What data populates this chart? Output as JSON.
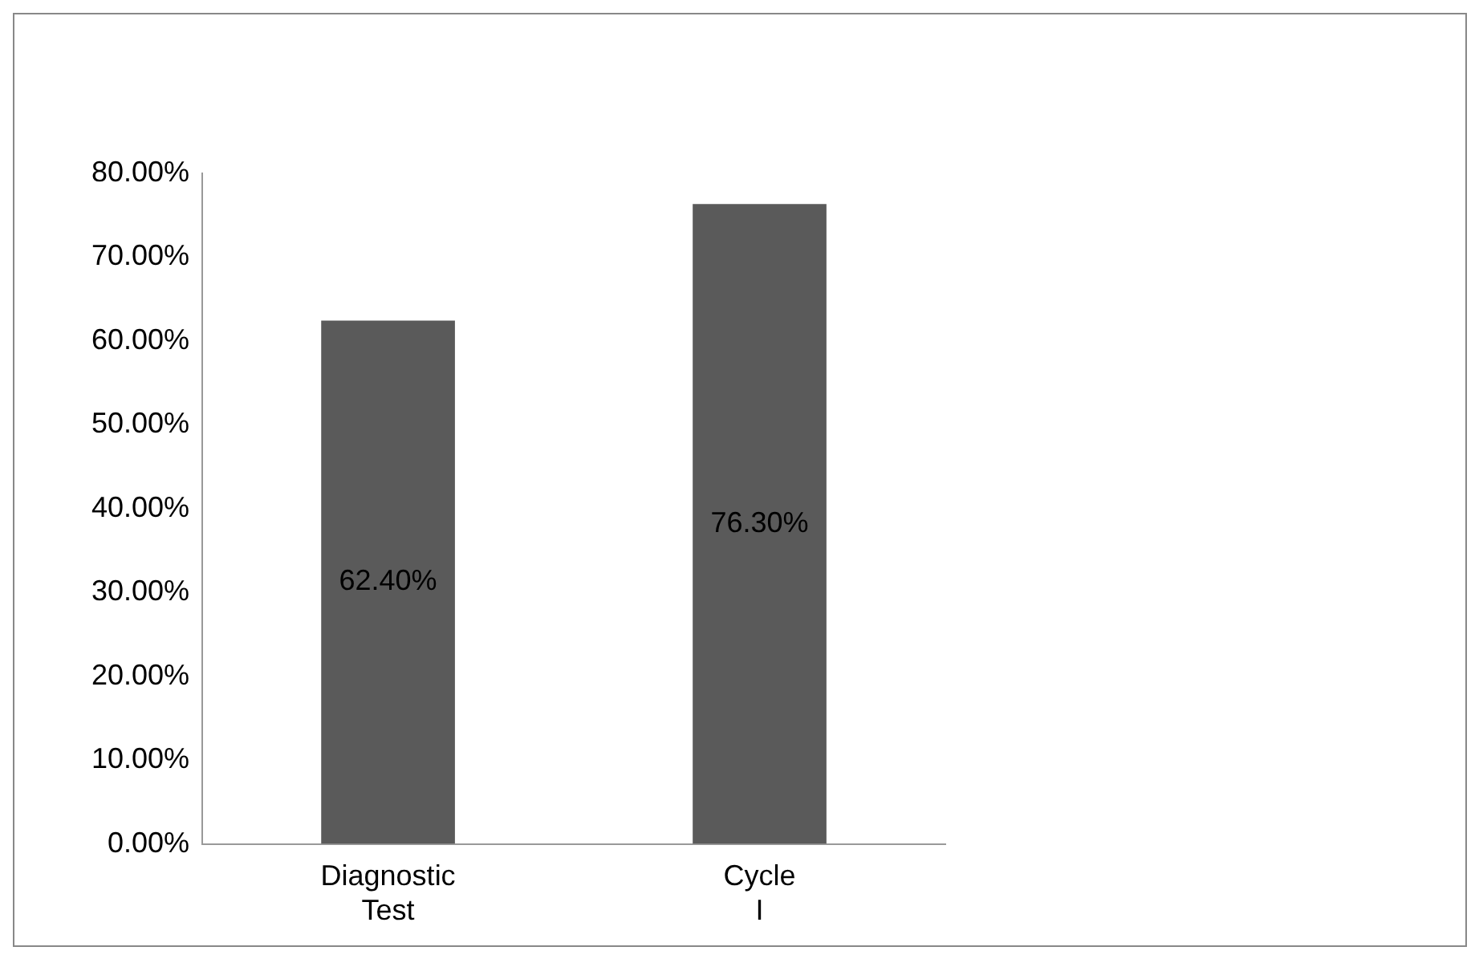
{
  "chart_data": {
    "type": "bar",
    "categories": [
      "Diagnostic Test",
      "Cycle I"
    ],
    "values": [
      62.4,
      76.3
    ],
    "color": "#5a5a5a",
    "value_labels": [
      "62.40%",
      "76.30%"
    ],
    "ylim": [
      0,
      80
    ],
    "yticks": [
      {
        "value": 0,
        "label": "0.00%"
      },
      {
        "value": 10,
        "label": "10.00%"
      },
      {
        "value": 20,
        "label": "20.00%"
      },
      {
        "value": 30,
        "label": "30.00%"
      },
      {
        "value": 40,
        "label": "40.00%"
      },
      {
        "value": 50,
        "label": "50.00%"
      },
      {
        "value": 60,
        "label": "60.00%"
      },
      {
        "value": 70,
        "label": "70.00%"
      },
      {
        "value": 80,
        "label": "80.00%"
      }
    ],
    "grid": false,
    "legend": false
  }
}
